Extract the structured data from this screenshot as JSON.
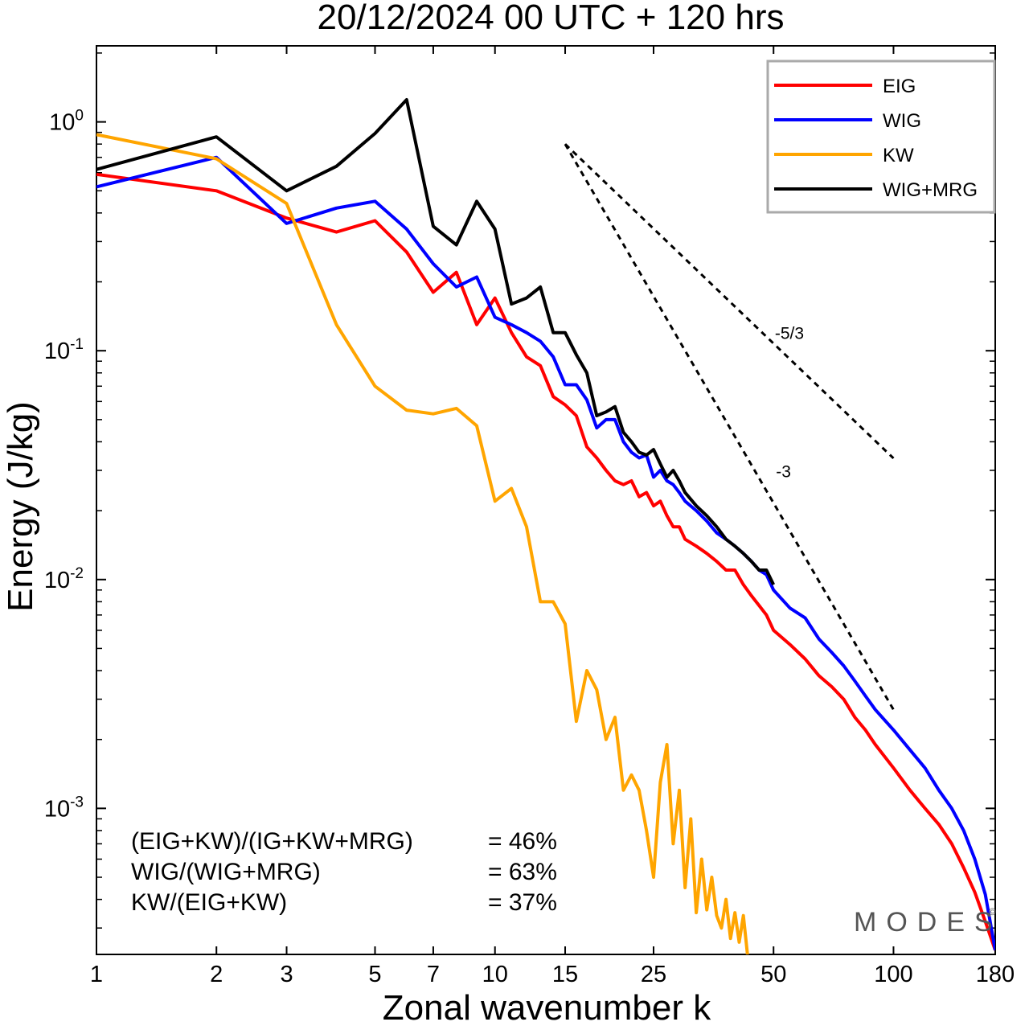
{
  "chart_data": {
    "type": "line",
    "title": "20/12/2024  00 UTC  + 120 hrs",
    "xlabel": "Zonal wavenumber k",
    "ylabel": "Energy (J/kg)",
    "x_scale": "log",
    "y_scale": "log",
    "xlim": [
      1,
      180
    ],
    "ylim": [
      0.00023,
      2.15
    ],
    "x_ticks": [
      1,
      2,
      3,
      5,
      7,
      10,
      15,
      25,
      50,
      100,
      180
    ],
    "y_ticks": [
      {
        "value": 1,
        "base": "10",
        "exp": "0"
      },
      {
        "value": 0.1,
        "base": "10",
        "exp": "-1"
      },
      {
        "value": 0.01,
        "base": "10",
        "exp": "-2"
      },
      {
        "value": 0.001,
        "base": "10",
        "exp": "-3"
      }
    ],
    "legend": {
      "position": "top-right"
    },
    "series": [
      {
        "name": "EIG",
        "color": "#ff0000",
        "points": [
          [
            1,
            0.59
          ],
          [
            2,
            0.5
          ],
          [
            3,
            0.38
          ],
          [
            4,
            0.33
          ],
          [
            5,
            0.37
          ],
          [
            6,
            0.27
          ],
          [
            7,
            0.18
          ],
          [
            8,
            0.22
          ],
          [
            9,
            0.13
          ],
          [
            10,
            0.17
          ],
          [
            11,
            0.12
          ],
          [
            12,
            0.094
          ],
          [
            13,
            0.086
          ],
          [
            14,
            0.063
          ],
          [
            15,
            0.058
          ],
          [
            16,
            0.052
          ],
          [
            17,
            0.038
          ],
          [
            18,
            0.034
          ],
          [
            19,
            0.03
          ],
          [
            20,
            0.027
          ],
          [
            21,
            0.026
          ],
          [
            22,
            0.027
          ],
          [
            23,
            0.023
          ],
          [
            24,
            0.024
          ],
          [
            25,
            0.021
          ],
          [
            26,
            0.022
          ],
          [
            27,
            0.019
          ],
          [
            28,
            0.017
          ],
          [
            29,
            0.017
          ],
          [
            30,
            0.015
          ],
          [
            32,
            0.014
          ],
          [
            34,
            0.013
          ],
          [
            36,
            0.012
          ],
          [
            38,
            0.011
          ],
          [
            40,
            0.011
          ],
          [
            42,
            0.0095
          ],
          [
            44,
            0.0085
          ],
          [
            46,
            0.0077
          ],
          [
            48,
            0.007
          ],
          [
            50,
            0.006
          ],
          [
            55,
            0.0052
          ],
          [
            60,
            0.0045
          ],
          [
            65,
            0.0038
          ],
          [
            70,
            0.0034
          ],
          [
            75,
            0.003
          ],
          [
            80,
            0.0025
          ],
          [
            85,
            0.0022
          ],
          [
            90,
            0.0019
          ],
          [
            100,
            0.0015
          ],
          [
            110,
            0.0012
          ],
          [
            120,
            0.001
          ],
          [
            130,
            0.00085
          ],
          [
            140,
            0.0007
          ],
          [
            150,
            0.00055
          ],
          [
            160,
            0.00043
          ],
          [
            170,
            0.00032
          ],
          [
            180,
            0.00024
          ]
        ]
      },
      {
        "name": "WIG",
        "color": "#0000ff",
        "points": [
          [
            1,
            0.52
          ],
          [
            2,
            0.7
          ],
          [
            3,
            0.36
          ],
          [
            4,
            0.42
          ],
          [
            5,
            0.45
          ],
          [
            6,
            0.34
          ],
          [
            7,
            0.24
          ],
          [
            8,
            0.19
          ],
          [
            9,
            0.21
          ],
          [
            10,
            0.14
          ],
          [
            11,
            0.13
          ],
          [
            12,
            0.12
          ],
          [
            13,
            0.11
          ],
          [
            14,
            0.094
          ],
          [
            15,
            0.071
          ],
          [
            16,
            0.071
          ],
          [
            17,
            0.061
          ],
          [
            18,
            0.046
          ],
          [
            19,
            0.05
          ],
          [
            20,
            0.05
          ],
          [
            21,
            0.04
          ],
          [
            22,
            0.036
          ],
          [
            23,
            0.034
          ],
          [
            24,
            0.035
          ],
          [
            25,
            0.028
          ],
          [
            26,
            0.03
          ],
          [
            27,
            0.027
          ],
          [
            28,
            0.026
          ],
          [
            29,
            0.024
          ],
          [
            30,
            0.022
          ],
          [
            32,
            0.02
          ],
          [
            34,
            0.018
          ],
          [
            36,
            0.016
          ],
          [
            38,
            0.015
          ],
          [
            40,
            0.014
          ],
          [
            42,
            0.013
          ],
          [
            44,
            0.012
          ],
          [
            46,
            0.011
          ],
          [
            48,
            0.0105
          ],
          [
            50,
            0.009
          ],
          [
            55,
            0.0075
          ],
          [
            60,
            0.0068
          ],
          [
            65,
            0.0055
          ],
          [
            70,
            0.0048
          ],
          [
            75,
            0.0042
          ],
          [
            80,
            0.0036
          ],
          [
            85,
            0.0031
          ],
          [
            90,
            0.0027
          ],
          [
            100,
            0.0022
          ],
          [
            110,
            0.0018
          ],
          [
            120,
            0.0015
          ],
          [
            130,
            0.0012
          ],
          [
            140,
            0.001
          ],
          [
            150,
            0.0008
          ],
          [
            160,
            0.0006
          ],
          [
            170,
            0.00042
          ],
          [
            180,
            0.00024
          ]
        ]
      },
      {
        "name": "KW",
        "color": "#ffa500",
        "points": [
          [
            1,
            0.88
          ],
          [
            2,
            0.69
          ],
          [
            3,
            0.44
          ],
          [
            4,
            0.13
          ],
          [
            5,
            0.07
          ],
          [
            6,
            0.055
          ],
          [
            7,
            0.053
          ],
          [
            8,
            0.056
          ],
          [
            9,
            0.047
          ],
          [
            10,
            0.022
          ],
          [
            11,
            0.025
          ],
          [
            12,
            0.017
          ],
          [
            13,
            0.008
          ],
          [
            14,
            0.008
          ],
          [
            15,
            0.0064
          ],
          [
            16,
            0.0024
          ],
          [
            17,
            0.004
          ],
          [
            18,
            0.0033
          ],
          [
            19,
            0.002
          ],
          [
            20,
            0.0025
          ],
          [
            21,
            0.0012
          ],
          [
            22,
            0.0014
          ],
          [
            23,
            0.0012
          ],
          [
            24,
            0.0008
          ],
          [
            25,
            0.0005
          ],
          [
            26,
            0.0013
          ],
          [
            27,
            0.0019
          ],
          [
            28,
            0.0007
          ],
          [
            29,
            0.0012
          ],
          [
            30,
            0.00045
          ],
          [
            31,
            0.0009
          ],
          [
            32,
            0.00035
          ],
          [
            33,
            0.0006
          ],
          [
            34,
            0.00036
          ],
          [
            35,
            0.0005
          ],
          [
            36,
            0.00034
          ],
          [
            37,
            0.0003
          ],
          [
            38,
            0.0004
          ],
          [
            39,
            0.00027
          ],
          [
            40,
            0.00035
          ],
          [
            41,
            0.00026
          ],
          [
            42,
            0.00034
          ],
          [
            43,
            0.00023
          ]
        ]
      },
      {
        "name": "WIG+MRG",
        "color": "#000000",
        "points": [
          [
            1,
            0.62
          ],
          [
            2,
            0.86
          ],
          [
            3,
            0.5
          ],
          [
            4,
            0.64
          ],
          [
            5,
            0.89
          ],
          [
            6,
            1.25
          ],
          [
            7,
            0.35
          ],
          [
            8,
            0.29
          ],
          [
            9,
            0.45
          ],
          [
            10,
            0.34
          ],
          [
            11,
            0.16
          ],
          [
            12,
            0.17
          ],
          [
            13,
            0.19
          ],
          [
            14,
            0.12
          ],
          [
            15,
            0.12
          ],
          [
            16,
            0.096
          ],
          [
            17,
            0.08
          ],
          [
            18,
            0.052
          ],
          [
            19,
            0.054
          ],
          [
            20,
            0.057
          ],
          [
            21,
            0.044
          ],
          [
            22,
            0.04
          ],
          [
            23,
            0.036
          ],
          [
            24,
            0.035
          ],
          [
            25,
            0.037
          ],
          [
            26,
            0.032
          ],
          [
            27,
            0.028
          ],
          [
            28,
            0.03
          ],
          [
            29,
            0.027
          ],
          [
            30,
            0.024
          ],
          [
            32,
            0.021
          ],
          [
            34,
            0.019
          ],
          [
            36,
            0.017
          ],
          [
            38,
            0.015
          ],
          [
            40,
            0.014
          ],
          [
            42,
            0.013
          ],
          [
            44,
            0.012
          ],
          [
            46,
            0.011
          ],
          [
            48,
            0.011
          ],
          [
            50,
            0.0095
          ]
        ]
      }
    ],
    "reference_lines": [
      {
        "label": "-5/3",
        "slope": -1.6667,
        "x_start": 15,
        "x_end": 100,
        "y_start": 0.8
      },
      {
        "label": "-3",
        "slope": -3,
        "x_start": 15,
        "x_end": 100,
        "y_start": 0.8
      }
    ],
    "annotations": [
      {
        "label": "(EIG+KW)/(IG+KW+MRG)",
        "value": "= 46%"
      },
      {
        "label": "WIG/(WIG+MRG)",
        "value": "= 63%"
      },
      {
        "label": "KW/(EIG+KW)",
        "value": "= 37%"
      }
    ],
    "branding": "MODES",
    "branding_mark": "©"
  }
}
